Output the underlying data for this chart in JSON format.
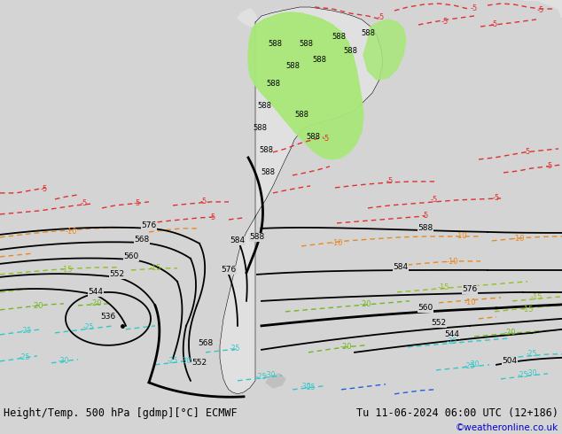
{
  "title_left": "Height/Temp. 500 hPa [gdmp][°C] ECMWF",
  "title_right": "Tu 11-06-2024 06:00 UTC (12+186)",
  "credit": "©weatheronline.co.uk",
  "bg_color": "#d4d4d4",
  "fig_width": 6.34,
  "fig_height": 4.9,
  "dpi": 100,
  "title_fontsize": 8.5,
  "credit_fontsize": 7.5,
  "credit_color": "#0000cc"
}
